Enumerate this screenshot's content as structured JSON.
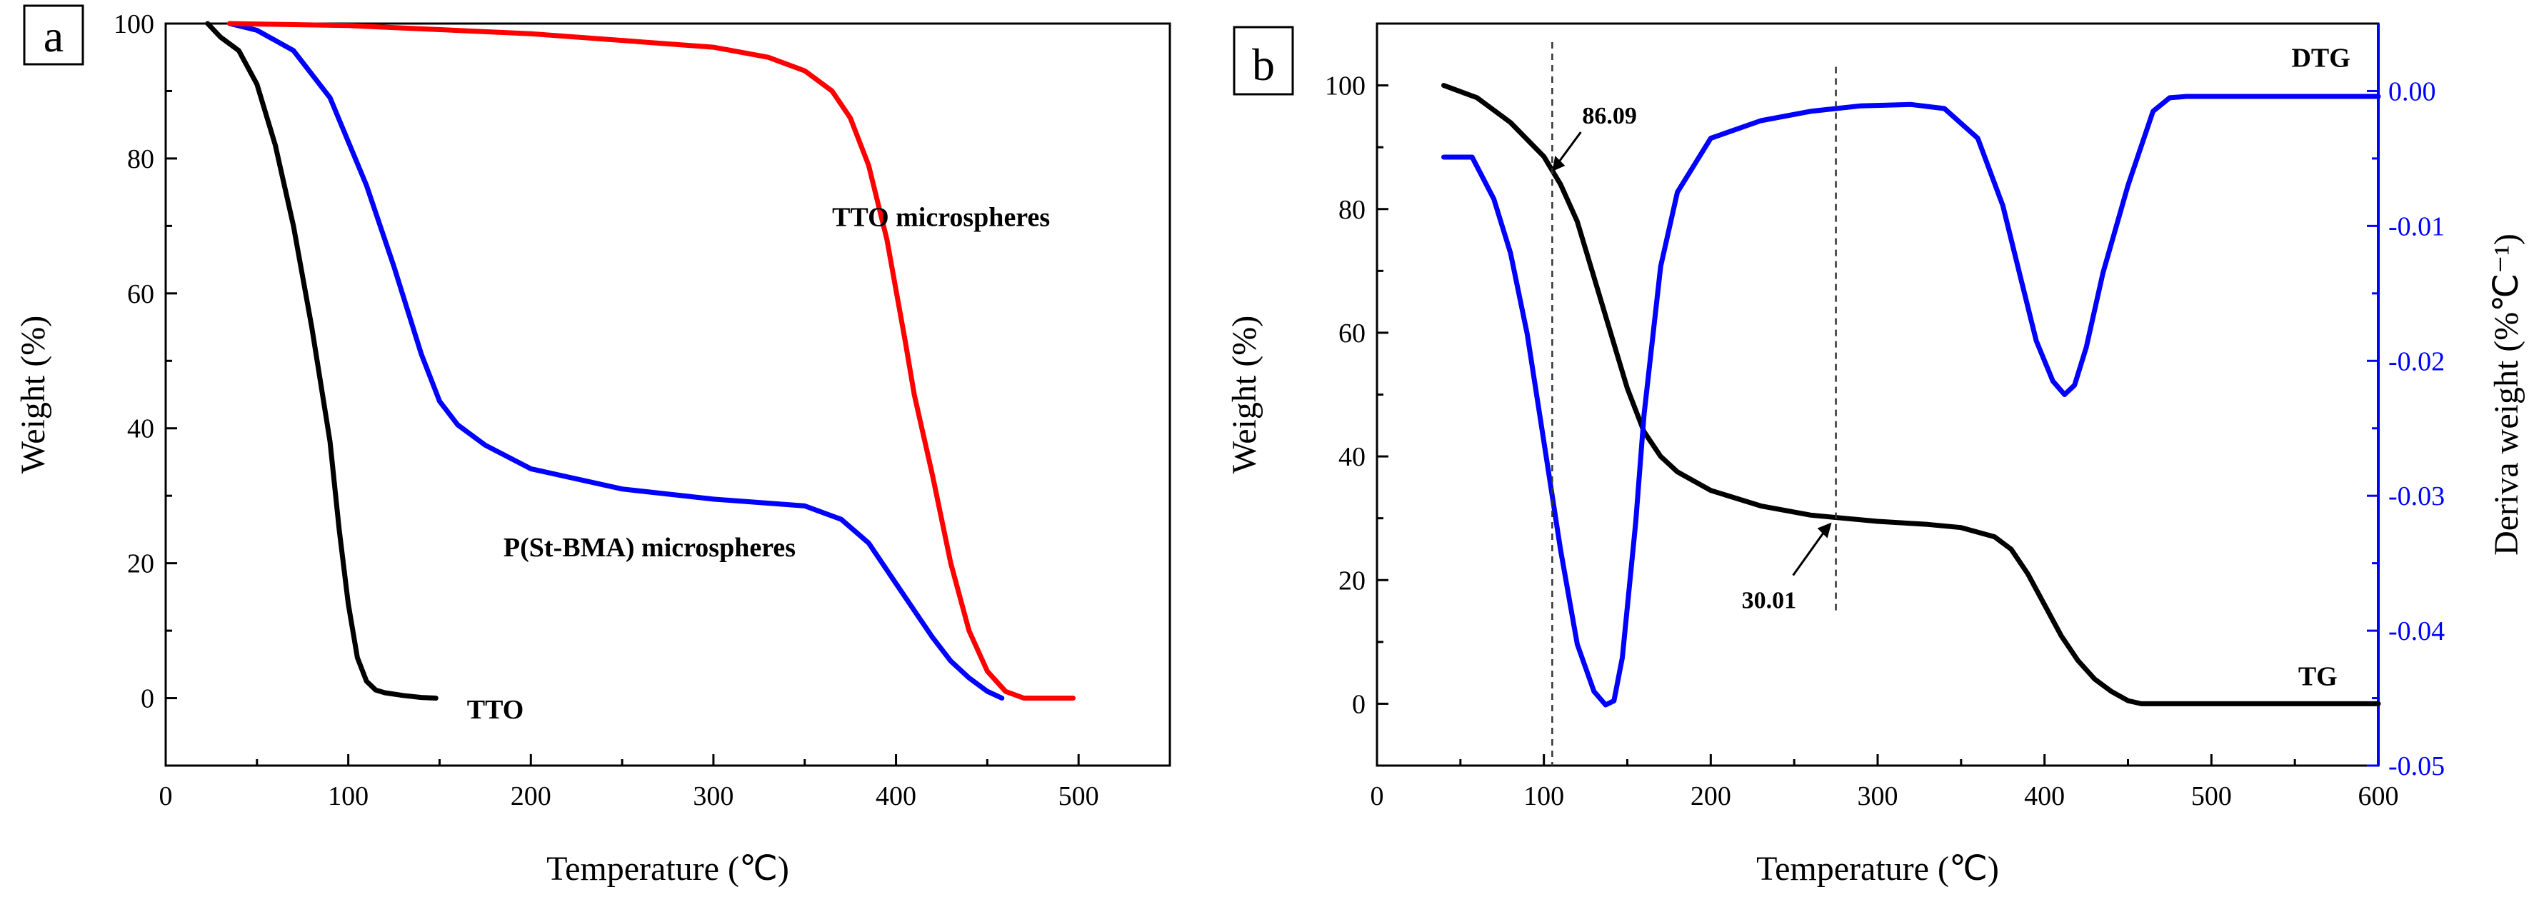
{
  "chart_data": [
    {
      "panel": "a",
      "type": "line",
      "xlabel": "Temperature (℃)",
      "ylabel": "Weight (%)",
      "xlim": [
        0,
        550
      ],
      "ylim": [
        -10,
        100
      ],
      "xticks": [
        0,
        100,
        200,
        300,
        400,
        500
      ],
      "yticks": [
        0,
        20,
        40,
        60,
        80,
        100
      ],
      "series": [
        {
          "name": "TTO",
          "color": "#000000",
          "x": [
            23,
            30,
            40,
            50,
            60,
            70,
            80,
            90,
            95,
            100,
            105,
            110,
            115,
            120,
            130,
            140,
            148
          ],
          "y": [
            100,
            98,
            96,
            91,
            82,
            70,
            55,
            38,
            25,
            14,
            6,
            2.5,
            1.2,
            0.8,
            0.4,
            0.1,
            0
          ]
        },
        {
          "name": "P(St-BMA) microspheres",
          "color": "#0000ff",
          "x": [
            35,
            50,
            70,
            90,
            110,
            125,
            140,
            150,
            160,
            175,
            200,
            250,
            300,
            350,
            370,
            385,
            400,
            410,
            420,
            430,
            440,
            450,
            458
          ],
          "y": [
            100,
            99,
            96,
            89,
            76,
            64,
            51,
            44,
            40.5,
            37.5,
            34,
            31,
            29.5,
            28.5,
            26.5,
            23,
            17,
            13,
            9,
            5.5,
            3,
            1,
            0
          ]
        },
        {
          "name": "TTO microspheres",
          "color": "#ff0000",
          "x": [
            35,
            100,
            200,
            300,
            330,
            350,
            365,
            375,
            385,
            395,
            405,
            410,
            420,
            430,
            440,
            450,
            460,
            470,
            480,
            497
          ],
          "y": [
            100,
            99.7,
            98.5,
            96.5,
            95,
            93,
            90,
            86,
            79,
            68,
            53,
            45,
            33,
            20,
            10,
            4,
            1,
            0,
            0,
            0
          ]
        }
      ],
      "annotations": [
        {
          "text": "TTO microspheres",
          "x": 365,
          "y": 70
        },
        {
          "text": "P(St-BMA) microspheres",
          "x": 185,
          "y": 21
        },
        {
          "text": "TTO",
          "x": 165,
          "y": -3
        }
      ]
    },
    {
      "panel": "b",
      "type": "line",
      "xlabel": "Temperature (℃)",
      "ylabel": "Weight (%)",
      "ylabel_right": "Deriva weight (%℃⁻¹)",
      "xlim": [
        0,
        600
      ],
      "ylim": [
        -10,
        110
      ],
      "ylim_right": [
        -0.05,
        0.005
      ],
      "xticks": [
        0,
        100,
        200,
        300,
        400,
        500,
        600
      ],
      "yticks": [
        0,
        20,
        40,
        60,
        80,
        100
      ],
      "yticks_right": [
        0.0,
        -0.01,
        -0.02,
        -0.03,
        -0.04,
        -0.05
      ],
      "ytick_labels_right": [
        "0.00",
        "-0.01",
        "-0.02",
        "-0.03",
        "-0.04",
        "-0.05"
      ],
      "series": [
        {
          "name": "TG",
          "color": "#000000",
          "axis": "left",
          "x": [
            40,
            60,
            80,
            100,
            110,
            120,
            130,
            140,
            150,
            160,
            170,
            180,
            200,
            230,
            260,
            280,
            300,
            330,
            350,
            370,
            380,
            390,
            400,
            410,
            420,
            430,
            440,
            450,
            458,
            470,
            600
          ],
          "y": [
            100,
            98,
            94,
            88.5,
            84,
            78,
            69,
            60,
            51,
            44,
            40,
            37.5,
            34.5,
            32,
            30.5,
            30,
            29.5,
            29,
            28.5,
            27,
            25,
            21,
            16,
            11,
            7,
            4,
            2,
            0.5,
            0,
            0,
            0
          ]
        },
        {
          "name": "DTG",
          "color": "#0000ff",
          "axis": "right",
          "x": [
            40,
            57,
            70,
            80,
            90,
            100,
            110,
            120,
            130,
            137,
            142,
            147,
            155,
            160,
            170,
            180,
            200,
            230,
            260,
            290,
            320,
            340,
            360,
            375,
            385,
            395,
            405,
            412,
            418,
            425,
            435,
            450,
            465,
            475,
            485,
            500,
            550,
            600
          ],
          "y": [
            -0.0049,
            -0.0049,
            -0.008,
            -0.012,
            -0.018,
            -0.026,
            -0.034,
            -0.041,
            -0.0445,
            -0.0455,
            -0.0452,
            -0.042,
            -0.032,
            -0.024,
            -0.013,
            -0.0075,
            -0.0035,
            -0.0022,
            -0.0015,
            -0.0011,
            -0.001,
            -0.0013,
            -0.0035,
            -0.0085,
            -0.0135,
            -0.0185,
            -0.0215,
            -0.0225,
            -0.0218,
            -0.019,
            -0.0135,
            -0.007,
            -0.0015,
            -0.0005,
            -0.0004,
            -0.0004,
            -0.0004,
            -0.0004
          ]
        }
      ],
      "markers": [
        {
          "label": "86.09",
          "x": 105,
          "y": 86.09
        },
        {
          "label": "30.01",
          "x": 275,
          "y": 30.01
        }
      ],
      "annotations": [
        {
          "text": "DTG",
          "x": 548,
          "y": 103
        },
        {
          "text": "TG",
          "x": 552,
          "y": 3
        }
      ]
    }
  ],
  "panels": {
    "a": {
      "letter": "a"
    },
    "b": {
      "letter": "b"
    }
  }
}
